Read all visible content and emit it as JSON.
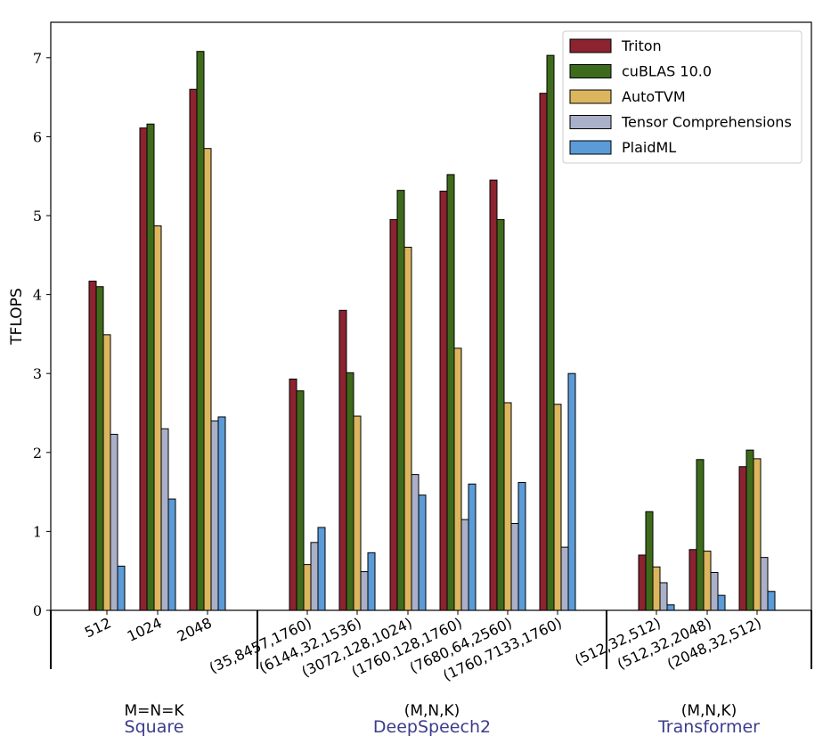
{
  "chart_data": {
    "type": "bar",
    "title": "",
    "xlabel": "",
    "ylabel": "TFLOPS",
    "ylim": [
      0,
      7.4
    ],
    "yticks": [
      0,
      1,
      2,
      3,
      4,
      5,
      6,
      7
    ],
    "legend_position": "top-right",
    "colors": {
      "Triton": "#8b2331",
      "cuBLAS 10.0": "#3e6b1b",
      "AutoTVM": "#dcb65e",
      "Tensor Comprehensions": "#aab0c8",
      "PlaidML": "#5a9bd8"
    },
    "group_name_color": "#3c3c8c",
    "groups": [
      {
        "subtitle": "M=N=K",
        "name": "Square",
        "categories": [
          "512",
          "1024",
          "2048"
        ]
      },
      {
        "subtitle": "(M,N,K)",
        "name": "DeepSpeech2",
        "categories": [
          "(35,8457,1760)",
          "(6144,32,1536)",
          "(3072,128,1024)",
          "(1760,128,1760)",
          "(7680,64,2560)",
          "(1760,7133,1760)"
        ]
      },
      {
        "subtitle": "(M,N,K)",
        "name": "Transformer",
        "categories": [
          "(512,32,512)",
          "(512,32,2048)",
          "(2048,32,512)"
        ]
      }
    ],
    "categories": [
      "512",
      "1024",
      "2048",
      "(35,8457,1760)",
      "(6144,32,1536)",
      "(3072,128,1024)",
      "(1760,128,1760)",
      "(7680,64,2560)",
      "(1760,7133,1760)",
      "(512,32,512)",
      "(512,32,2048)",
      "(2048,32,512)"
    ],
    "series": [
      {
        "name": "Triton",
        "values": [
          4.17,
          6.11,
          6.6,
          2.93,
          3.8,
          4.95,
          5.31,
          5.45,
          6.55,
          0.7,
          0.77,
          1.82
        ]
      },
      {
        "name": "cuBLAS 10.0",
        "values": [
          4.1,
          6.16,
          7.08,
          2.78,
          3.01,
          5.32,
          5.52,
          4.95,
          7.03,
          1.25,
          1.91,
          2.03
        ]
      },
      {
        "name": "AutoTVM",
        "values": [
          3.49,
          4.87,
          5.85,
          0.58,
          2.46,
          4.6,
          3.32,
          2.63,
          2.61,
          0.55,
          0.75,
          1.92
        ]
      },
      {
        "name": "Tensor Comprehensions",
        "values": [
          2.23,
          2.3,
          2.4,
          0.86,
          0.49,
          1.72,
          1.15,
          1.1,
          0.8,
          0.35,
          0.48,
          0.67
        ]
      },
      {
        "name": "PlaidML",
        "values": [
          0.56,
          1.41,
          2.45,
          1.05,
          0.73,
          1.46,
          1.6,
          1.62,
          3.0,
          0.07,
          0.19,
          0.24
        ]
      }
    ]
  }
}
